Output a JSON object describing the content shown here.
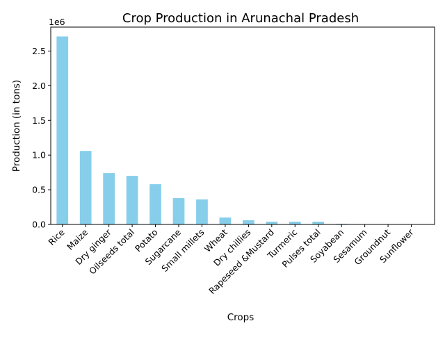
{
  "chart_data": {
    "type": "bar",
    "title": "Crop Production in Arunachal Pradesh",
    "xlabel": "Crops",
    "ylabel": "Production (in tons)",
    "y_offset_label": "1e6",
    "categories": [
      "Rice",
      "Maize",
      "Dry ginger",
      "Oilseeds total",
      "Potato",
      "Sugarcane",
      "Small millets",
      "Wheat",
      "Dry chillies",
      "Rapeseed &Mustard",
      "Turmeric",
      "Pulses total",
      "Soyabean",
      "Sesamum",
      "Groundnut",
      "Sunflower"
    ],
    "values": [
      2710000,
      1060000,
      740000,
      700000,
      580000,
      380000,
      360000,
      100000,
      60000,
      40000,
      40000,
      40000,
      10000,
      3000,
      2000,
      1000
    ],
    "ylim": [
      0,
      2845000
    ],
    "yticks": [
      0,
      500000,
      1000000,
      1500000,
      2000000,
      2500000
    ],
    "ytick_labels": [
      "0.0",
      "0.5",
      "1.0",
      "1.5",
      "2.0",
      "2.5"
    ],
    "bar_color": "#87ceeb",
    "grid": false,
    "legend": "none"
  }
}
